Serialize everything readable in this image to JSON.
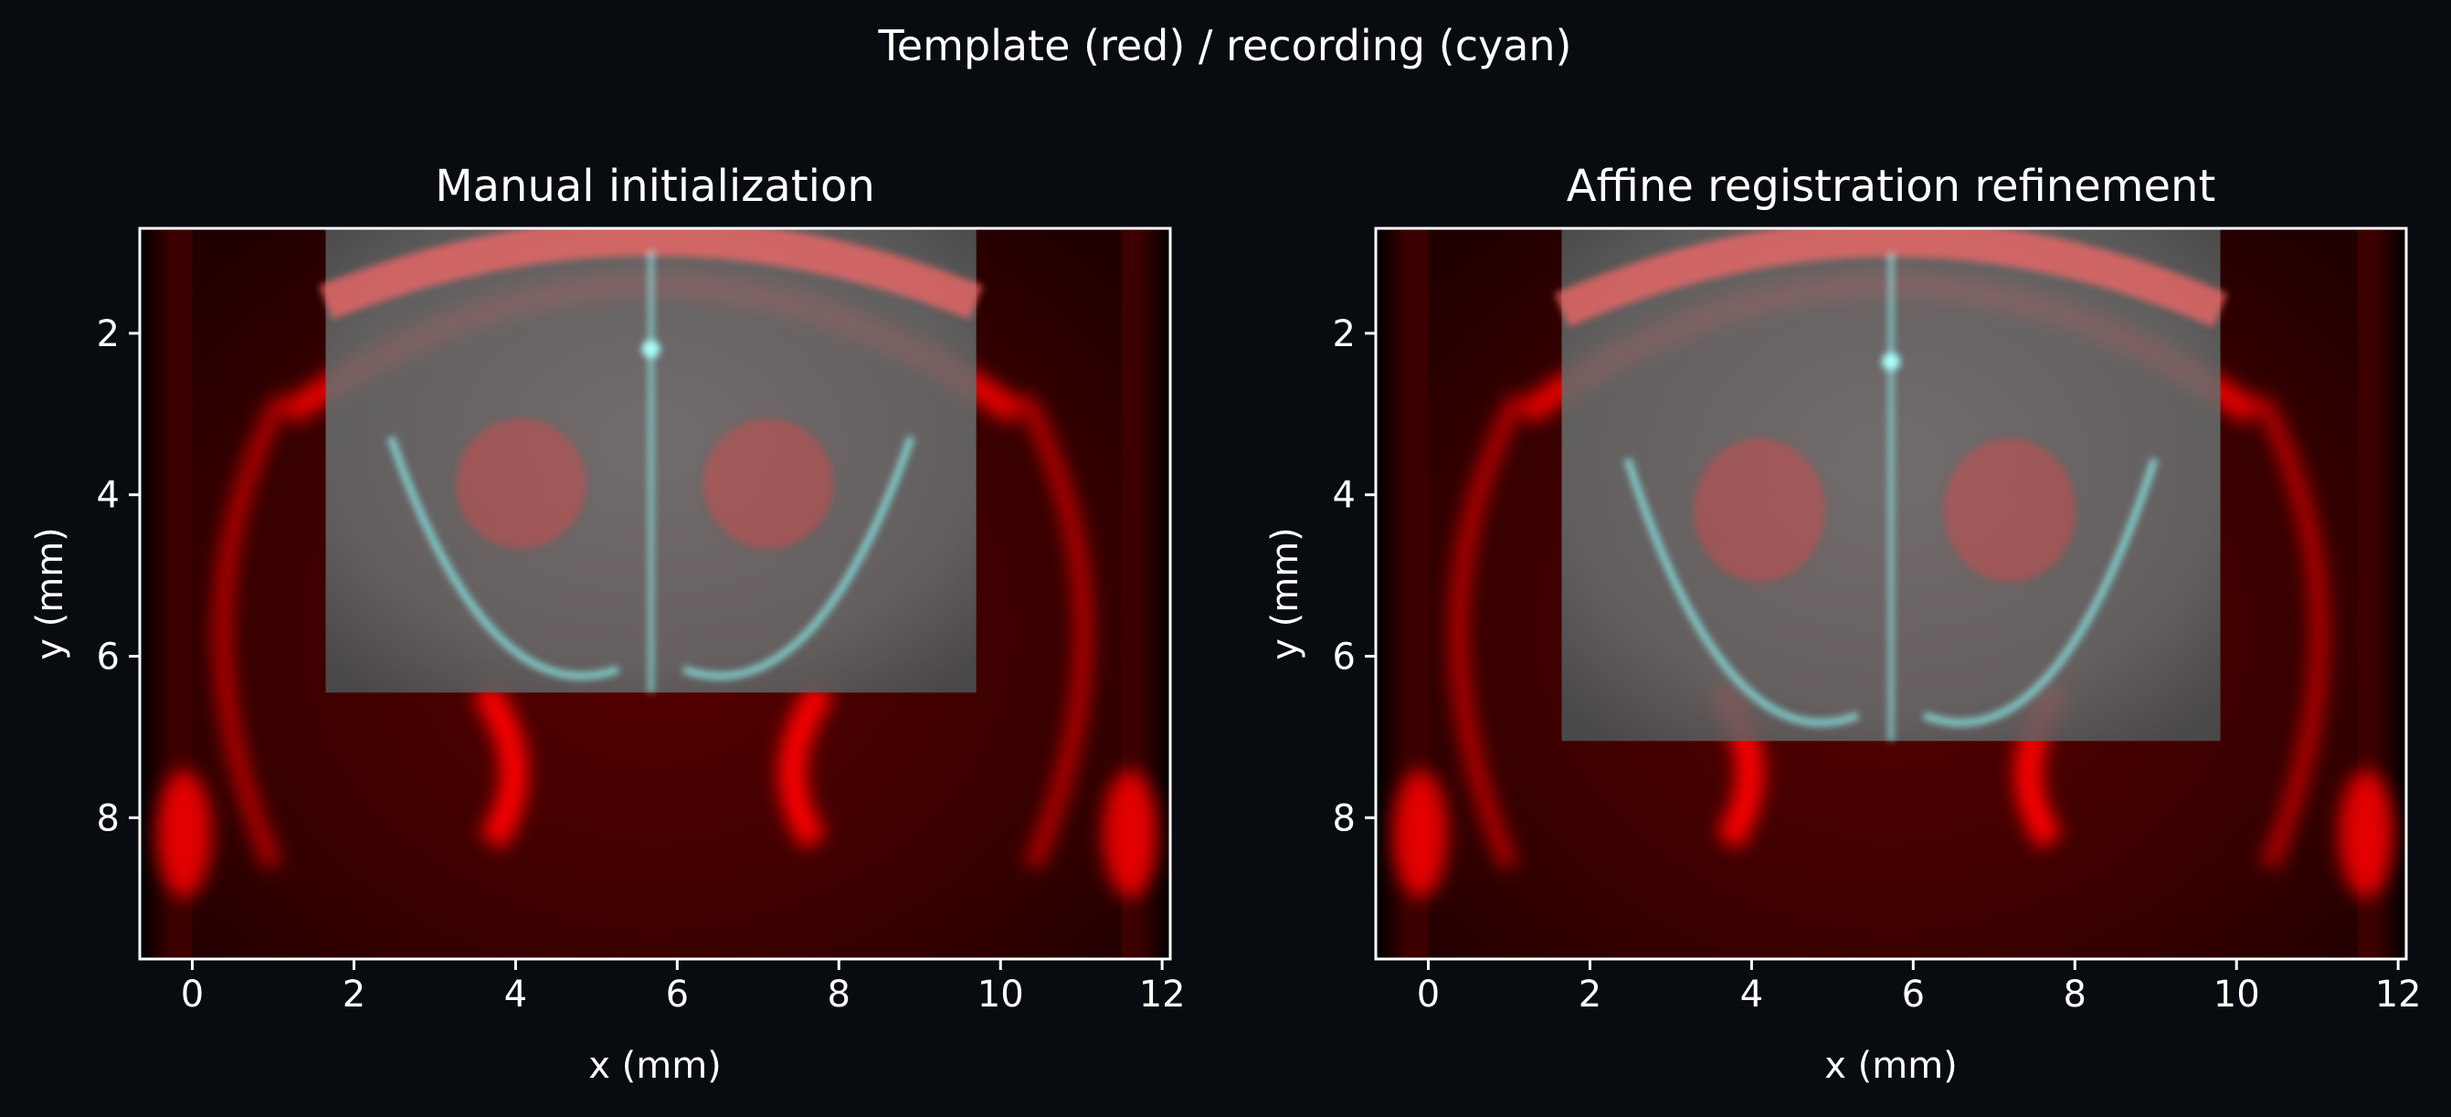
{
  "figure": {
    "suptitle": "Template (red) / recording (cyan)",
    "background": "#080b10",
    "template_color": "#ff0000",
    "recording_color": "#00ffff"
  },
  "chart_data": [
    {
      "type": "heatmap",
      "title": "Manual initialization",
      "xlabel": "x (mm)",
      "ylabel": "y (mm)",
      "xlim": [
        -0.65,
        12.1
      ],
      "ylim": [
        9.75,
        0.7
      ],
      "y_inverted": true,
      "xticks": [
        0,
        2,
        4,
        6,
        8,
        10,
        12
      ],
      "yticks": [
        2,
        4,
        6,
        8
      ],
      "template_extent": {
        "x": [
          -0.65,
          12.1
        ],
        "y": [
          0.7,
          9.75
        ]
      },
      "recording_extent": {
        "x": [
          1.65,
          9.7
        ],
        "y": [
          0.7,
          6.45
        ]
      }
    },
    {
      "type": "heatmap",
      "title": "Affine registration refinement",
      "xlabel": "x (mm)",
      "ylabel": "y (mm)",
      "xlim": [
        -0.65,
        12.1
      ],
      "ylim": [
        9.75,
        0.7
      ],
      "y_inverted": true,
      "xticks": [
        0,
        2,
        4,
        6,
        8,
        10,
        12
      ],
      "yticks": [
        2,
        4,
        6,
        8
      ],
      "template_extent": {
        "x": [
          -0.65,
          12.1
        ],
        "y": [
          0.7,
          9.75
        ]
      },
      "recording_extent": {
        "x": [
          1.65,
          9.8
        ],
        "y": [
          0.7,
          7.05
        ]
      }
    }
  ]
}
